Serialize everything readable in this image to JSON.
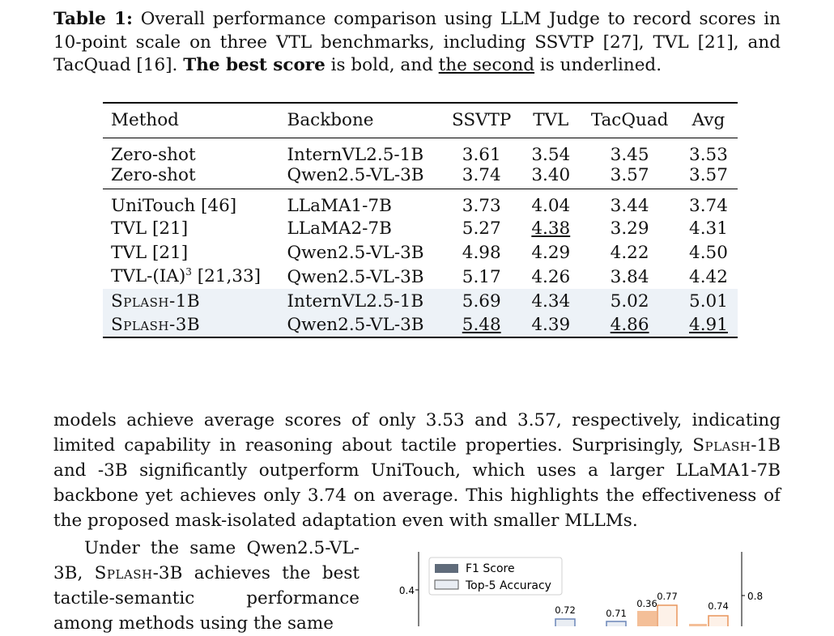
{
  "caption": {
    "label": "Table 1:",
    "text1": " Overall performance comparison using LLM Judge to record scores in 10-point scale on three VTL benchmarks, including SSVTP [27], TVL [21], and TacQuad [16]. ",
    "best_bold": "The best score",
    "text2": " is bold, and ",
    "second_underlined": "the second",
    "text3": " is underlined."
  },
  "table": {
    "headers": [
      "Method",
      "Backbone",
      "SSVTP",
      "TVL",
      "TacQuad",
      "Avg"
    ],
    "rows": [
      {
        "method": "Zero-shot",
        "backbone": "InternVL2.5-1B",
        "ssvtp": "3.61",
        "tvl": "3.54",
        "tacquad": "3.45",
        "avg": "3.53"
      },
      {
        "method": "Zero-shot",
        "backbone": "Qwen2.5-VL-3B",
        "ssvtp": "3.74",
        "tvl": "3.40",
        "tacquad": "3.57",
        "avg": "3.57"
      },
      {
        "method": "UniTouch [46]",
        "backbone": "LLaMA1-7B",
        "ssvtp": "3.73",
        "tvl": "4.04",
        "tacquad": "3.44",
        "avg": "3.74"
      },
      {
        "method": "TVL [21]",
        "backbone": "LLaMA2-7B",
        "ssvtp": "5.27",
        "tvl": "4.38",
        "tacquad": "3.29",
        "avg": "4.31"
      },
      {
        "method": "TVL [21]",
        "backbone": "Qwen2.5-VL-3B",
        "ssvtp": "4.98",
        "tvl": "4.29",
        "tacquad": "4.22",
        "avg": "4.50"
      },
      {
        "method_base": "TVL-(IA)",
        "method_sup": "3",
        "method_ref": " [21,33]",
        "backbone": "Qwen2.5-VL-3B",
        "ssvtp": "5.17",
        "tvl": "4.26",
        "tacquad": "3.84",
        "avg": "4.42"
      },
      {
        "method": "Splash-1B",
        "backbone": "InternVL2.5-1B",
        "ssvtp": "5.69",
        "tvl": "4.34",
        "tacquad": "5.02",
        "avg": "5.01"
      },
      {
        "method": "Splash-3B",
        "backbone": "Qwen2.5-VL-3B",
        "ssvtp": "5.48",
        "tvl": "4.39",
        "tacquad": "4.86",
        "avg": "4.91"
      }
    ]
  },
  "body": {
    "p1_a": "models achieve average scores of only 3.53 and 3.57, respectively, indicating limited capability in reasoning about tactile properties. Surprisingly, ",
    "p1_splash": "Splash",
    "p1_b": "-1B and -3B significantly outperform UniTouch, which uses a larger LLaMA1-7B backbone yet achieves only 3.74 on average. This highlights the effectiveness of the proposed mask-isolated adaptation even with smaller MLLMs.",
    "p2_a": "Under the same Qwen2.5-VL-3B, ",
    "p2_splash": "Splash",
    "p2_b": "-3B achieves the best tactile-semantic performance among methods using the same"
  },
  "chart_data": {
    "type": "bar",
    "legend": [
      "F1 Score",
      "Top-5 Accuracy"
    ],
    "legend_position": "top-left",
    "y_left_tick": "0.4",
    "y_right_tick": "0.8",
    "value_labels": [
      "0.72",
      "0.71",
      "0.36",
      "0.77",
      "0.74"
    ],
    "colors": {
      "f1": "#5f6b7a",
      "f1_accent": "#f4bf98",
      "top5": "#e9edf3",
      "top5_accent": "#fdf1e8",
      "top5_edge_blue": "#6b86b8",
      "top5_edge_orange": "#e9955c"
    }
  }
}
